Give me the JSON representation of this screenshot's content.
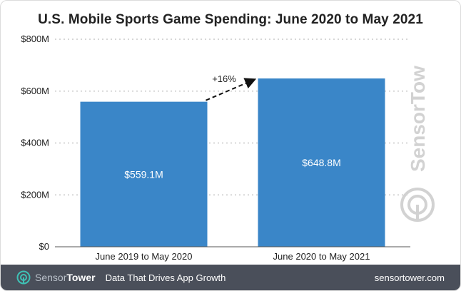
{
  "chart_data": {
    "type": "bar",
    "title": "U.S. Mobile Sports Game Spending: June 2020 to May 2021",
    "categories": [
      "June 2019 to May 2020",
      "June 2020 to May 2021"
    ],
    "values": [
      559.1,
      648.8
    ],
    "value_labels": [
      "$559.1M",
      "$648.8M"
    ],
    "ylim": [
      0,
      800
    ],
    "yticks": [
      0,
      200,
      400,
      600,
      800
    ],
    "ytick_labels": [
      "$0",
      "$200M",
      "$400M",
      "$600M",
      "$800M"
    ],
    "xlabel": "",
    "ylabel": "",
    "grid": true,
    "bar_color": "#3a86c8",
    "annotation": "+16%"
  },
  "watermark": {
    "sensor": "Sensor",
    "tower": "Tower"
  },
  "footer": {
    "brand_sensor": "Sensor",
    "brand_tower": "Tower",
    "tagline": "Data That Drives App Growth",
    "site": "sensortower.com",
    "background": "#4a4f5a"
  }
}
